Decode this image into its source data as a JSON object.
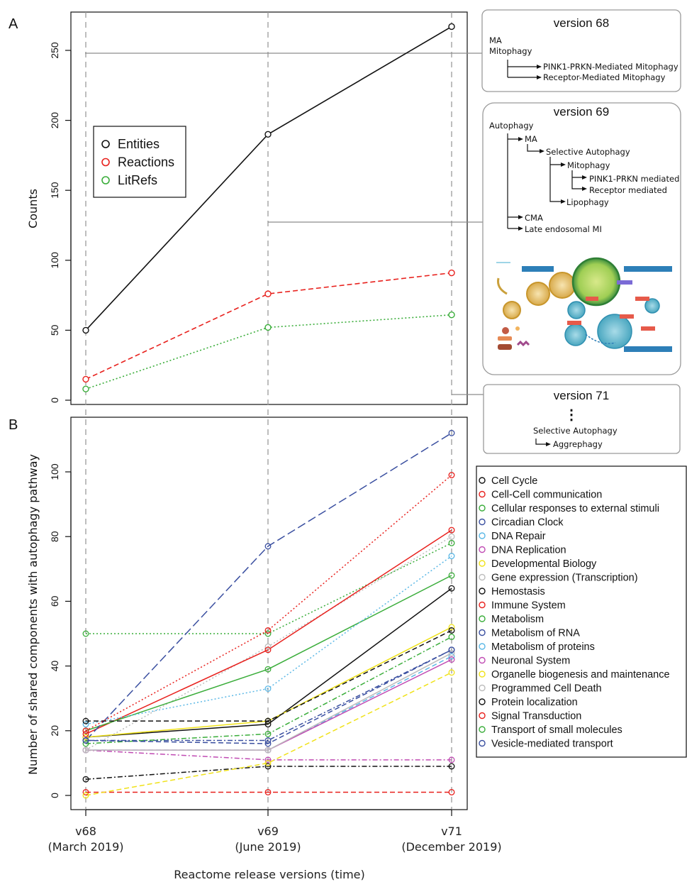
{
  "panel_labels": [
    "A",
    "B"
  ],
  "xlabel": "Reactome release versions (time)",
  "x_ticks": [
    {
      "v": "v68",
      "date": "(March 2019)"
    },
    {
      "v": "v69",
      "date": "(June 2019)"
    },
    {
      "v": "v71",
      "date": "(December 2019)"
    }
  ],
  "colors": {
    "black": "#111111",
    "red": "#e8211d",
    "green": "#3aad3a",
    "blue": "#3a4fa0",
    "cyan": "#5bb8e6",
    "magenta": "#c04bb3",
    "yellow": "#f0e21a",
    "gray": "#bdbdbd",
    "ref_line": "#8c8c8c"
  },
  "chart_data": [
    {
      "type": "line",
      "panel": "A",
      "ylabel": "Counts",
      "ylim": [
        0,
        275
      ],
      "yticks": [
        0,
        50,
        100,
        150,
        200,
        250
      ],
      "categories": [
        "v68",
        "v69",
        "v71"
      ],
      "legend_position": "upper-left",
      "series": [
        {
          "name": "Entities",
          "color": "black",
          "dash": "solid",
          "values": [
            50,
            190,
            267
          ]
        },
        {
          "name": "Reactions",
          "color": "red",
          "dash": "dashed",
          "values": [
            15,
            76,
            91
          ]
        },
        {
          "name": "LitRefs",
          "color": "green",
          "dash": "dotted",
          "values": [
            8,
            52,
            61
          ]
        }
      ]
    },
    {
      "type": "line",
      "panel": "B",
      "ylabel": "Number of shared components with autophagy pathway",
      "ylim": [
        -3,
        117
      ],
      "yticks": [
        0,
        20,
        40,
        60,
        80,
        100
      ],
      "categories": [
        "v68",
        "v69",
        "v71"
      ],
      "legend_position": "right",
      "series": [
        {
          "name": "Cell Cycle",
          "color": "black",
          "dash": "solid",
          "values": [
            18,
            22,
            64
          ]
        },
        {
          "name": "Cell-Cell communication",
          "color": "red",
          "dash": "dashed",
          "values": [
            1,
            1,
            1
          ]
        },
        {
          "name": "Cellular responses to external stimuli",
          "color": "green",
          "dash": "dotted",
          "values": [
            50,
            50,
            78
          ]
        },
        {
          "name": "Circadian Clock",
          "color": "blue",
          "dash": "dotdash",
          "values": [
            17,
            17,
            45
          ]
        },
        {
          "name": "DNA Repair",
          "color": "cyan",
          "dash": "dashed",
          "values": [
            14,
            14,
            43
          ]
        },
        {
          "name": "DNA Replication",
          "color": "magenta",
          "dash": "dashdot",
          "values": [
            14,
            11,
            11
          ]
        },
        {
          "name": "Developmental Biology",
          "color": "yellow",
          "dash": "solid",
          "values": [
            18,
            23,
            52
          ]
        },
        {
          "name": "Gene expression (Transcription)",
          "color": "gray",
          "dash": "dotted",
          "values": [
            14,
            46,
            80
          ]
        },
        {
          "name": "Hemostasis",
          "color": "black",
          "dash": "dashdot",
          "values": [
            5,
            9,
            9
          ]
        },
        {
          "name": "Immune System",
          "color": "red",
          "dash": "solid",
          "values": [
            19,
            45,
            82
          ]
        },
        {
          "name": "Metabolism",
          "color": "green",
          "dash": "solid",
          "values": [
            20,
            39,
            68
          ]
        },
        {
          "name": "Metabolism of RNA",
          "color": "blue",
          "dash": "longdash",
          "values": [
            17,
            77,
            112
          ]
        },
        {
          "name": "Metabolism of proteins",
          "color": "cyan",
          "dash": "dotted",
          "values": [
            22,
            33,
            74
          ]
        },
        {
          "name": "Neuronal System",
          "color": "magenta",
          "dash": "solid",
          "values": [
            14,
            14,
            42
          ]
        },
        {
          "name": "Organelle biogenesis and maintenance",
          "color": "yellow",
          "dash": "dashed",
          "values": [
            0,
            10,
            38
          ]
        },
        {
          "name": "Programmed Cell Death",
          "color": "gray",
          "dash": "solid",
          "values": [
            14,
            14,
            44
          ]
        },
        {
          "name": "Protein localization",
          "color": "black",
          "dash": "dashed",
          "values": [
            23,
            23,
            51
          ]
        },
        {
          "name": "Signal Transduction",
          "color": "red",
          "dash": "dotted",
          "values": [
            20,
            51,
            99
          ]
        },
        {
          "name": "Transport of small molecules",
          "color": "green",
          "dash": "dashdot",
          "values": [
            16,
            19,
            49
          ]
        },
        {
          "name": "Vesicle-mediated transport",
          "color": "blue",
          "dash": "dashed",
          "values": [
            17,
            16,
            45
          ]
        }
      ]
    }
  ],
  "version_boxes": {
    "v68": {
      "title": "version 68",
      "lines": [
        "MA",
        "Mitophagy",
        "PINK1-PRKN-Mediated Mitophagy",
        "Receptor-Mediated Mitophagy"
      ]
    },
    "v69": {
      "title": "version 69",
      "lines": [
        "Autophagy",
        "MA",
        "Selective Autophagy",
        "Mitophagy",
        "PINK1-PRKN mediated",
        "Receptor mediated",
        "Lipophagy",
        "CMA",
        "Late endosomal MI"
      ]
    },
    "v71": {
      "title": "version 71",
      "dots": "⋮",
      "lines": [
        "Selective Autophagy",
        "Aggrephagy"
      ]
    }
  }
}
